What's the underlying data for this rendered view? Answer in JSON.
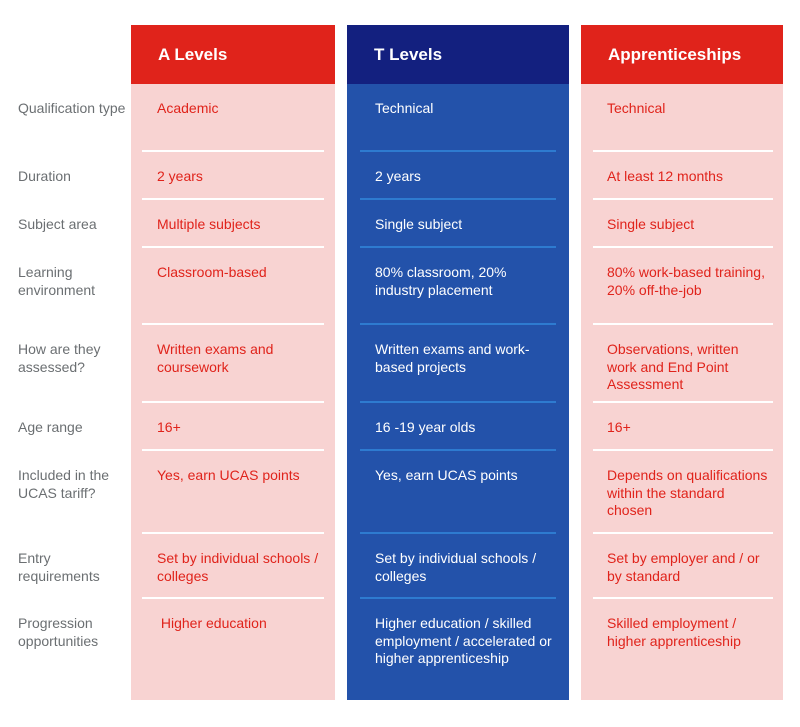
{
  "columns": [
    {
      "title": "A Levels",
      "color": "#E0231B",
      "body_color": "#F8D3D2"
    },
    {
      "title": "T Levels",
      "color": "#13207F",
      "body_color": "#2352AA"
    },
    {
      "title": "Apprenticeships",
      "color": "#E0231B",
      "body_color": "#F8D3D2"
    }
  ],
  "rows": [
    {
      "label": "Qualification type",
      "values": [
        "Academic",
        "Technical",
        "Technical"
      ]
    },
    {
      "label": "Duration",
      "values": [
        "2 years",
        "2 years",
        "At least 12 months"
      ]
    },
    {
      "label": "Subject area",
      "values": [
        "Multiple subjects",
        "Single subject",
        "Single subject"
      ]
    },
    {
      "label": "Learning environment",
      "values": [
        "Classroom-based",
        "80% classroom, 20% industry placement",
        "80% work-based training, 20% off-the-job"
      ]
    },
    {
      "label": "How are they assessed?",
      "values": [
        "Written exams and coursework",
        "Written exams and work-based projects",
        "Observations, written work and End Point Assessment"
      ]
    },
    {
      "label": "Age range",
      "values": [
        "16+",
        "16 -19 year olds",
        "16+"
      ]
    },
    {
      "label": "Included in the UCAS tariff?",
      "values": [
        "Yes, earn UCAS points",
        "Yes, earn UCAS points",
        "Depends on qualifications within the standard chosen"
      ]
    },
    {
      "label": "Entry requirements",
      "values": [
        "Set by individual schools / colleges",
        "Set by individual schools / colleges",
        "Set by employer and / or by standard"
      ]
    },
    {
      "label": "Progression opportunities",
      "values": [
        " Higher education",
        "Higher education / skilled employment / accelerated or higher apprenticeship",
        "Skilled employment / higher apprenticeship"
      ]
    }
  ]
}
